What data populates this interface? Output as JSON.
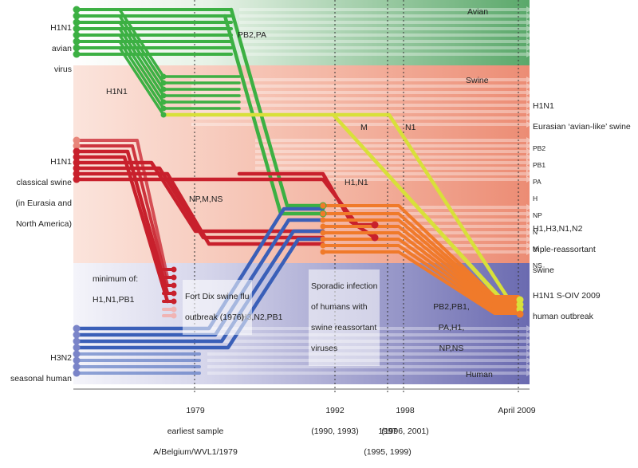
{
  "colors": {
    "avian": "#3cb043",
    "swine": "#c8202c",
    "yellow": "#d8e03a",
    "orange": "#f07a2a",
    "human": "#3a5fb8",
    "band_avian": "#5aa86a",
    "band_swine": "#ec8c74",
    "band_human": "#6a6ab0"
  },
  "lineages": {
    "avian": [
      "H1N1",
      "avian",
      "virus"
    ],
    "avian_to_swine": "H1N1",
    "classical": [
      "H1N1",
      "classical swine",
      "(in Eurasia and",
      "North America)"
    ],
    "human": [
      "H3N2",
      "seasonal human"
    ]
  },
  "bands": {
    "avian": "Avian",
    "swine": "Swine",
    "human": "Human"
  },
  "right_labels": {
    "eurasian": [
      "H1N1",
      "Eurasian ‘avian-like’ swine"
    ],
    "triple": [
      "H1,H3,N1,N2",
      "triple-reassortant",
      "swine"
    ],
    "soiv": [
      "H1N1 S-OIV 2009",
      "human outbreak"
    ]
  },
  "segments": [
    "PB2",
    "PB1",
    "PA",
    "H",
    "NP",
    "N",
    "M",
    "NS"
  ],
  "transfers": {
    "pb2_pa": "PB2,PA",
    "m": "M",
    "n1": "N1",
    "h1_n1": "H1,N1",
    "np_m_ns": "NP,M,NS",
    "h3_n2_pb1": "H3,N2,PB1",
    "final": [
      "PB2,PB1,",
      "PA,H1,",
      "NP,NS"
    ]
  },
  "annotations": {
    "minimum": [
      "minimum of:",
      "H1,N1,PB1"
    ],
    "fort_dix": [
      "Fort Dix swine flu",
      "outbreak (1976)"
    ],
    "sporadic": [
      "Sporadic infection",
      "of humans with",
      "swine reassortant",
      "viruses"
    ]
  },
  "timeline": {
    "t1979": [
      "1979",
      "earliest sample",
      "A/Belgium/WVL1/1979"
    ],
    "t1992": [
      "1992",
      "(1990, 1993)"
    ],
    "t1997": [
      "1997",
      "(1995, 1999)"
    ],
    "t1998": [
      "1998",
      "(1996, 2001)"
    ],
    "t2009": [
      "April 2009"
    ]
  }
}
